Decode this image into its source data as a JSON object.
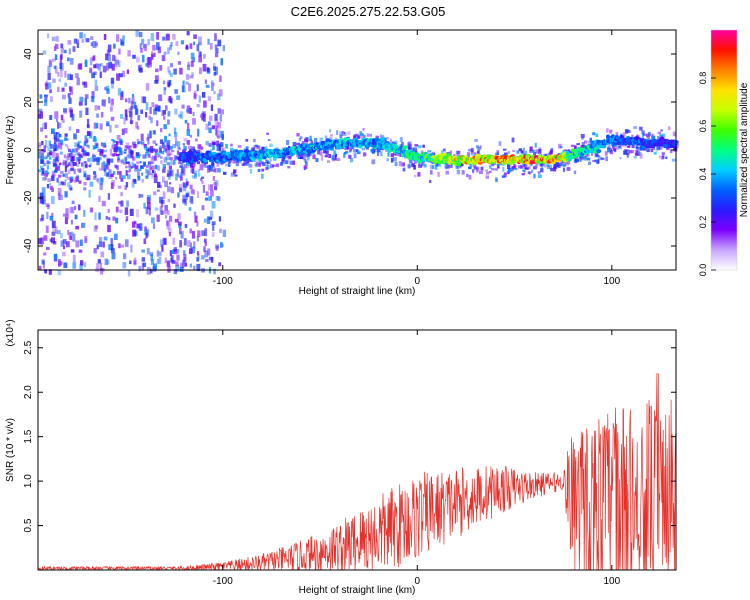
{
  "title": "C2E6.2025.275.22.53.G05",
  "chart_data": [
    {
      "type": "heatmap",
      "name": "spectrogram",
      "xlabel": "Height of straight line (km)",
      "ylabel": "Frequency (Hz)",
      "xlim": [
        -195,
        133
      ],
      "ylim": [
        -50,
        50
      ],
      "xticks": [
        -100,
        0,
        100
      ],
      "xtick_labels": [
        "-100",
        "0",
        "100"
      ],
      "yticks": [
        -40,
        -20,
        0,
        20,
        40
      ],
      "ytick_labels": [
        "-40",
        "-20",
        "0",
        "20",
        "40"
      ],
      "colorbar": {
        "label": "Normalized spectral amplitude",
        "range": [
          0,
          1
        ],
        "ticks": [
          0.0,
          0.2,
          0.4,
          0.6,
          0.8
        ],
        "tick_labels": [
          "0.0",
          "0.2",
          "0.4",
          "0.6",
          "0.8"
        ],
        "colors": [
          "#ffffff",
          "#c8a6ff",
          "#7b00ff",
          "#2a1aff",
          "#0060ff",
          "#00d0ff",
          "#00ff80",
          "#40ff00",
          "#c8ff00",
          "#ffe000",
          "#ff8000",
          "#ff1000",
          "#ff00a0"
        ]
      },
      "ridge": {
        "x": [
          -120,
          -100,
          -80,
          -60,
          -40,
          -20,
          0,
          20,
          40,
          60,
          70,
          80,
          100,
          120,
          133
        ],
        "freq": [
          -3,
          -3,
          -2,
          0,
          3,
          3,
          -3,
          -4,
          -4,
          -4,
          -4,
          -2,
          4,
          3,
          3
        ],
        "peak_amplitude": [
          0.35,
          0.4,
          0.45,
          0.45,
          0.45,
          0.45,
          0.55,
          0.8,
          0.9,
          0.95,
          0.95,
          0.6,
          0.4,
          0.35,
          0.3
        ]
      }
    },
    {
      "type": "line",
      "name": "snr",
      "xlabel": "Height of straight line (km)",
      "ylabel": "SNR (10 * v/v)",
      "scale_label": "(x10⁴)",
      "xlim": [
        -195,
        133
      ],
      "ylim": [
        0,
        2.7
      ],
      "xticks": [
        -100,
        0,
        100
      ],
      "xtick_labels": [
        "-100",
        "0",
        "100"
      ],
      "yticks": [
        0.5,
        1.0,
        1.5,
        2.0,
        2.5
      ],
      "ytick_labels": [
        "0.5",
        "1.0",
        "1.5",
        "2.0",
        "2.5"
      ],
      "color": "#e8302a",
      "envelope": {
        "x": [
          -195,
          -120,
          -100,
          -80,
          -60,
          -40,
          -20,
          0,
          20,
          40,
          60,
          75,
          80,
          100,
          133
        ],
        "mean": [
          0.02,
          0.02,
          0.04,
          0.08,
          0.15,
          0.25,
          0.4,
          0.6,
          0.75,
          0.9,
          0.95,
          1.0,
          0.75,
          0.75,
          0.75
        ],
        "spread": [
          0.02,
          0.02,
          0.05,
          0.1,
          0.18,
          0.3,
          0.45,
          0.5,
          0.4,
          0.3,
          0.15,
          0.1,
          0.9,
          1.1,
          1.2
        ]
      }
    }
  ]
}
